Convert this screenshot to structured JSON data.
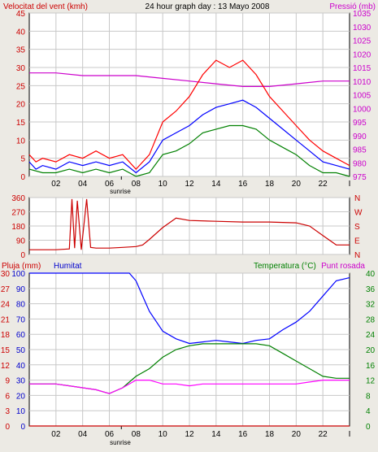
{
  "chart_data": [
    {
      "type": "line",
      "title": "24 hour graph day : 13 Mayo 2008",
      "left_label": "Velocitat del vent (kmh)",
      "right_label": "Pressió (mb)",
      "x_ticks": [
        "02",
        "04",
        "06",
        "08",
        "10",
        "12",
        "14",
        "16",
        "18",
        "20",
        "22",
        "I"
      ],
      "sunrise_label": "sunrise",
      "xlim": [
        0,
        24
      ],
      "ylim_left": [
        0,
        45
      ],
      "y_ticks_left": [
        "0",
        "5",
        "10",
        "15",
        "20",
        "25",
        "30",
        "35",
        "40",
        "45"
      ],
      "ylim_right": [
        975,
        1035
      ],
      "y_ticks_right": [
        "975",
        "980",
        "985",
        "990",
        "995",
        "1000",
        "1005",
        "1010",
        "1015",
        "1020",
        "1025",
        "1030",
        "1035"
      ],
      "grid": true,
      "colors": {
        "gust": "#ff0000",
        "average": "#0000ff",
        "min": "#008000",
        "pressure": "#cc00cc"
      },
      "series": [
        {
          "axis": "right",
          "color": "pressure",
          "values": [
            [
              0,
              1013
            ],
            [
              2,
              1013
            ],
            [
              4,
              1012
            ],
            [
              6,
              1012
            ],
            [
              8,
              1012
            ],
            [
              10,
              1011
            ],
            [
              12,
              1010
            ],
            [
              14,
              1009
            ],
            [
              16,
              1008
            ],
            [
              18,
              1008
            ],
            [
              20,
              1009
            ],
            [
              22,
              1010
            ],
            [
              24,
              1010
            ]
          ]
        },
        {
          "axis": "left",
          "color": "gust",
          "values": [
            [
              0,
              6
            ],
            [
              0.5,
              4
            ],
            [
              1,
              5
            ],
            [
              2,
              4
            ],
            [
              3,
              6
            ],
            [
              4,
              5
            ],
            [
              5,
              7
            ],
            [
              6,
              5
            ],
            [
              7,
              6
            ],
            [
              8,
              2
            ],
            [
              9,
              6
            ],
            [
              10,
              15
            ],
            [
              11,
              18
            ],
            [
              12,
              22
            ],
            [
              13,
              28
            ],
            [
              14,
              32
            ],
            [
              15,
              30
            ],
            [
              16,
              32
            ],
            [
              17,
              28
            ],
            [
              18,
              22
            ],
            [
              19,
              18
            ],
            [
              20,
              14
            ],
            [
              21,
              10
            ],
            [
              22,
              7
            ],
            [
              23,
              5
            ],
            [
              24,
              3
            ]
          ]
        },
        {
          "axis": "left",
          "color": "average",
          "values": [
            [
              0,
              4
            ],
            [
              0.5,
              2
            ],
            [
              1,
              3
            ],
            [
              2,
              2
            ],
            [
              3,
              4
            ],
            [
              4,
              3
            ],
            [
              5,
              4
            ],
            [
              6,
              3
            ],
            [
              7,
              4
            ],
            [
              8,
              1
            ],
            [
              9,
              4
            ],
            [
              10,
              10
            ],
            [
              11,
              12
            ],
            [
              12,
              14
            ],
            [
              13,
              17
            ],
            [
              14,
              19
            ],
            [
              15,
              20
            ],
            [
              16,
              21
            ],
            [
              17,
              19
            ],
            [
              18,
              16
            ],
            [
              19,
              13
            ],
            [
              20,
              10
            ],
            [
              21,
              7
            ],
            [
              22,
              4
            ],
            [
              23,
              3
            ],
            [
              24,
              2
            ]
          ]
        },
        {
          "axis": "left",
          "color": "min",
          "values": [
            [
              0,
              2
            ],
            [
              1,
              1
            ],
            [
              2,
              1
            ],
            [
              3,
              2
            ],
            [
              4,
              1
            ],
            [
              5,
              2
            ],
            [
              6,
              1
            ],
            [
              7,
              2
            ],
            [
              8,
              0
            ],
            [
              9,
              1
            ],
            [
              10,
              6
            ],
            [
              11,
              7
            ],
            [
              12,
              9
            ],
            [
              13,
              12
            ],
            [
              14,
              13
            ],
            [
              15,
              14
            ],
            [
              16,
              14
            ],
            [
              17,
              13
            ],
            [
              18,
              10
            ],
            [
              19,
              8
            ],
            [
              20,
              6
            ],
            [
              21,
              3
            ],
            [
              22,
              1
            ],
            [
              23,
              1
            ],
            [
              24,
              0
            ]
          ]
        }
      ]
    },
    {
      "type": "line",
      "title": "",
      "x_ticks": [
        "02",
        "04",
        "06",
        "08",
        "10",
        "12",
        "14",
        "16",
        "18",
        "20",
        "22",
        "I"
      ],
      "xlim": [
        0,
        24
      ],
      "ylim": [
        0,
        360
      ],
      "y_ticks": [
        "0",
        "90",
        "180",
        "270",
        "360"
      ],
      "direction_labels": [
        "N",
        "W",
        "S",
        "E",
        "N"
      ],
      "grid": true,
      "colors": {
        "direction": "#cc0000"
      },
      "series": [
        {
          "color": "direction",
          "values": [
            [
              0,
              30
            ],
            [
              2,
              30
            ],
            [
              3,
              35
            ],
            [
              3.2,
              350
            ],
            [
              3.4,
              40
            ],
            [
              3.6,
              340
            ],
            [
              3.9,
              30
            ],
            [
              4.3,
              350
            ],
            [
              4.6,
              45
            ],
            [
              5,
              40
            ],
            [
              6,
              40
            ],
            [
              7,
              45
            ],
            [
              8,
              50
            ],
            [
              8.5,
              60
            ],
            [
              9,
              95
            ],
            [
              10,
              170
            ],
            [
              11,
              230
            ],
            [
              12,
              215
            ],
            [
              14,
              210
            ],
            [
              16,
              205
            ],
            [
              18,
              205
            ],
            [
              20,
              200
            ],
            [
              21,
              180
            ],
            [
              22,
              120
            ],
            [
              23,
              60
            ],
            [
              24,
              60
            ]
          ]
        }
      ]
    },
    {
      "type": "line",
      "title": "",
      "pluja_label": "Pluja (mm)",
      "humitat_label": "Humitat",
      "temperatura_label": "Temperatura (°C)",
      "punt_rosada_label": "Punt rosada",
      "x_ticks": [
        "02",
        "04",
        "06",
        "08",
        "10",
        "12",
        "14",
        "16",
        "18",
        "20",
        "22",
        "I"
      ],
      "sunrise_label": "sunrise",
      "xlim": [
        0,
        24
      ],
      "y_ticks_pluja": [
        "0",
        "3",
        "6",
        "9",
        "12",
        "15",
        "18",
        "21",
        "24",
        "27",
        "30"
      ],
      "y_ticks_humitat": [
        "0",
        "10",
        "20",
        "30",
        "40",
        "50",
        "60",
        "70",
        "80",
        "90",
        "100"
      ],
      "ylim_temp": [
        0,
        40
      ],
      "y_ticks_temp": [
        "0",
        "4",
        "8",
        "12",
        "16",
        "20",
        "24",
        "28",
        "32",
        "36",
        "40"
      ],
      "grid": true,
      "colors": {
        "humitat": "#0000ff",
        "temperatura": "#008000",
        "punt_rosada": "#ff00ff",
        "pluja": "#cc0000"
      },
      "series": [
        {
          "color": "humitat",
          "scale": "humitat",
          "values": [
            [
              0,
              100
            ],
            [
              2,
              100
            ],
            [
              4,
              100
            ],
            [
              6,
              100
            ],
            [
              7.5,
              100
            ],
            [
              8,
              95
            ],
            [
              8.5,
              85
            ],
            [
              9,
              75
            ],
            [
              10,
              62
            ],
            [
              11,
              57
            ],
            [
              12,
              54
            ],
            [
              13,
              55
            ],
            [
              14,
              56
            ],
            [
              15,
              55
            ],
            [
              16,
              54
            ],
            [
              17,
              56
            ],
            [
              18,
              57
            ],
            [
              19,
              63
            ],
            [
              20,
              68
            ],
            [
              21,
              75
            ],
            [
              22,
              85
            ],
            [
              23,
              95
            ],
            [
              24,
              97
            ]
          ]
        },
        {
          "color": "temperatura",
          "scale": "temp",
          "values": [
            [
              0,
              11
            ],
            [
              1,
              11
            ],
            [
              2,
              11
            ],
            [
              3,
              10.5
            ],
            [
              4,
              10
            ],
            [
              5,
              9.5
            ],
            [
              6,
              8.5
            ],
            [
              7,
              10
            ],
            [
              8,
              13
            ],
            [
              9,
              15
            ],
            [
              10,
              18
            ],
            [
              11,
              20
            ],
            [
              12,
              21
            ],
            [
              13,
              21.5
            ],
            [
              14,
              21.5
            ],
            [
              15,
              21.5
            ],
            [
              16,
              21.5
            ],
            [
              17,
              21.5
            ],
            [
              18,
              21
            ],
            [
              19,
              19
            ],
            [
              20,
              17
            ],
            [
              21,
              15
            ],
            [
              22,
              13
            ],
            [
              23,
              12.5
            ],
            [
              24,
              12.5
            ]
          ]
        },
        {
          "color": "punt_rosada",
          "scale": "temp",
          "values": [
            [
              0,
              11
            ],
            [
              2,
              11
            ],
            [
              4,
              10
            ],
            [
              5,
              9.5
            ],
            [
              6,
              8.5
            ],
            [
              7,
              10
            ],
            [
              8,
              12
            ],
            [
              9,
              12
            ],
            [
              10,
              11
            ],
            [
              11,
              11
            ],
            [
              12,
              10.5
            ],
            [
              13,
              11
            ],
            [
              14,
              11
            ],
            [
              15,
              11
            ],
            [
              16,
              11
            ],
            [
              17,
              11
            ],
            [
              18,
              11
            ],
            [
              19,
              11
            ],
            [
              20,
              11
            ],
            [
              21,
              11.5
            ],
            [
              22,
              12
            ],
            [
              23,
              12
            ],
            [
              24,
              12
            ]
          ]
        },
        {
          "color": "pluja",
          "scale": "pluja",
          "values": [
            [
              0,
              0
            ],
            [
              24,
              0
            ]
          ]
        }
      ]
    }
  ]
}
